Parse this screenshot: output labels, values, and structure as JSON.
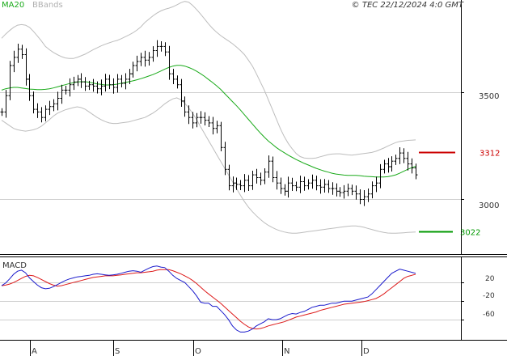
{
  "header": {
    "ma_label": "MA20",
    "bbands_label": "BBands",
    "copyright": "© TEC 22/12/2024 4:0 GMT"
  },
  "macd_label": "MACD",
  "colors": {
    "price": "#000000",
    "ma20": "#1aaa1a",
    "bbands": "#bdbdbd",
    "macd": "#1a1acc",
    "signal": "#dd1a1a",
    "resistance": "#cc0000",
    "support": "#009900",
    "grid": "#cfcfcf"
  },
  "chart_data": [
    {
      "type": "line",
      "title": "",
      "subtype": "ohlc-bars",
      "x_tick_labels": [
        "A",
        "S",
        "O",
        "N",
        "D"
      ],
      "y_tick_labels": [
        "3500",
        "3000"
      ],
      "ylim": [
        2940,
        3870
      ],
      "grid": "horizontal",
      "resistance": {
        "value": 3312,
        "label": "3312"
      },
      "support": {
        "value": 3022,
        "label": "3022"
      },
      "series": [
        {
          "name": "MA20",
          "values": [
            3540,
            3545,
            3548,
            3550,
            3550,
            3548,
            3546,
            3544,
            3543,
            3542,
            3542,
            3543,
            3545,
            3548,
            3552,
            3556,
            3560,
            3564,
            3567,
            3570,
            3571,
            3571,
            3569,
            3566,
            3563,
            3561,
            3559,
            3559,
            3560,
            3562,
            3565,
            3568,
            3571,
            3574,
            3578,
            3582,
            3587,
            3592,
            3597,
            3603,
            3610,
            3617,
            3623,
            3628,
            3631,
            3631,
            3628,
            3623,
            3617,
            3609,
            3600,
            3590,
            3579,
            3568,
            3556,
            3543,
            3528,
            3513,
            3498,
            3483,
            3467,
            3450,
            3433,
            3416,
            3399,
            3383,
            3368,
            3354,
            3342,
            3330,
            3320,
            3311,
            3302,
            3294,
            3286,
            3279,
            3272,
            3266,
            3260,
            3254,
            3249,
            3244,
            3240,
            3236,
            3233,
            3231,
            3229,
            3228,
            3228,
            3228,
            3227,
            3225,
            3224,
            3223,
            3222,
            3222,
            3222,
            3223,
            3226,
            3230,
            3236,
            3243,
            3250,
            3256,
            3261
          ]
        },
        {
          "name": "BBands upper",
          "values": [
            3730,
            3745,
            3758,
            3770,
            3778,
            3780,
            3778,
            3770,
            3755,
            3738,
            3720,
            3700,
            3688,
            3678,
            3670,
            3663,
            3658,
            3656,
            3656,
            3660,
            3666,
            3672,
            3680,
            3688,
            3695,
            3702,
            3708,
            3713,
            3718,
            3722,
            3728,
            3735,
            3742,
            3750,
            3760,
            3772,
            3788,
            3800,
            3812,
            3822,
            3830,
            3836,
            3840,
            3845,
            3852,
            3860,
            3865,
            3862,
            3850,
            3835,
            3818,
            3800,
            3782,
            3766,
            3752,
            3740,
            3730,
            3720,
            3710,
            3698,
            3685,
            3670,
            3650,
            3628,
            3600,
            3570,
            3540,
            3505,
            3470,
            3435,
            3400,
            3370,
            3345,
            3325,
            3308,
            3297,
            3292,
            3290,
            3290,
            3292,
            3296,
            3300,
            3304,
            3306,
            3307,
            3307,
            3305,
            3303,
            3302,
            3304,
            3306,
            3308,
            3310,
            3312,
            3316,
            3322,
            3328,
            3335,
            3342,
            3348,
            3352,
            3354,
            3356,
            3357,
            3358
          ]
        },
        {
          "name": "BBands lower",
          "values": [
            3430,
            3420,
            3410,
            3400,
            3395,
            3392,
            3390,
            3392,
            3395,
            3400,
            3408,
            3420,
            3432,
            3445,
            3455,
            3462,
            3468,
            3472,
            3476,
            3479,
            3476,
            3470,
            3460,
            3450,
            3440,
            3432,
            3425,
            3420,
            3418,
            3418,
            3420,
            3422,
            3424,
            3428,
            3432,
            3436,
            3440,
            3448,
            3456,
            3466,
            3478,
            3490,
            3500,
            3508,
            3512,
            3505,
            3492,
            3475,
            3455,
            3432,
            3405,
            3380,
            3355,
            3330,
            3305,
            3280,
            3255,
            3230,
            3205,
            3180,
            3155,
            3132,
            3112,
            3095,
            3080,
            3067,
            3055,
            3045,
            3037,
            3030,
            3025,
            3021,
            3018,
            3016,
            3016,
            3018,
            3020,
            3022,
            3024,
            3026,
            3028,
            3030,
            3032,
            3034,
            3036,
            3038,
            3040,
            3042,
            3043,
            3043,
            3041,
            3038,
            3034,
            3030,
            3026,
            3022,
            3019,
            3017,
            3016,
            3016,
            3017,
            3018,
            3019,
            3020,
            3021
          ]
        },
        {
          "name": "Close",
          "values": [
            3460,
            3520,
            3630,
            3660,
            3690,
            3670,
            3580,
            3520,
            3470,
            3460,
            3440,
            3470,
            3480,
            3490,
            3510,
            3540,
            3540,
            3560,
            3570,
            3580,
            3570,
            3555,
            3560,
            3555,
            3545,
            3555,
            3580,
            3560,
            3550,
            3580,
            3565,
            3580,
            3600,
            3630,
            3645,
            3660,
            3650,
            3660,
            3685,
            3700,
            3700,
            3680,
            3600,
            3580,
            3560,
            3500,
            3460,
            3440,
            3420,
            3440,
            3440,
            3430,
            3420,
            3400,
            3410,
            3330,
            3250,
            3190,
            3200,
            3195,
            3190,
            3210,
            3190,
            3230,
            3220,
            3210,
            3240,
            3280,
            3220,
            3200,
            3180,
            3170,
            3200,
            3190,
            3185,
            3205,
            3190,
            3200,
            3210,
            3190,
            3185,
            3195,
            3180,
            3180,
            3170,
            3165,
            3170,
            3180,
            3170,
            3160,
            3140,
            3150,
            3160,
            3190,
            3200,
            3250,
            3270,
            3260,
            3280,
            3290,
            3310,
            3290,
            3270,
            3255,
            3230
          ]
        }
      ]
    },
    {
      "type": "line",
      "title": "MACD",
      "y_tick_labels": [
        "20",
        "-20",
        "-60"
      ],
      "ylim": [
        -105,
        55
      ],
      "series": [
        {
          "name": "MACD",
          "values": [
            0,
            5,
            13,
            22,
            28,
            30,
            25,
            15,
            8,
            1,
            -4,
            -6,
            -5,
            -2,
            2,
            6,
            10,
            13,
            15,
            17,
            18,
            19,
            20,
            22,
            23,
            22,
            21,
            20,
            21,
            22,
            24,
            26,
            28,
            29,
            28,
            26,
            30,
            34,
            37,
            38,
            36,
            35,
            28,
            20,
            14,
            10,
            6,
            -2,
            -10,
            -20,
            -32,
            -34,
            -34,
            -40,
            -40,
            -48,
            -56,
            -66,
            -78,
            -86,
            -90,
            -90,
            -88,
            -84,
            -78,
            -74,
            -70,
            -64,
            -66,
            -66,
            -64,
            -60,
            -56,
            -54,
            -55,
            -52,
            -50,
            -46,
            -42,
            -40,
            -38,
            -38,
            -36,
            -34,
            -34,
            -32,
            -30,
            -30,
            -30,
            -28,
            -26,
            -24,
            -22,
            -16,
            -8,
            0,
            8,
            16,
            24,
            28,
            32,
            30,
            28,
            26,
            24
          ]
        },
        {
          "name": "Signal",
          "values": [
            0,
            1,
            3,
            6,
            10,
            14,
            18,
            20,
            19,
            16,
            12,
            8,
            4,
            1,
            -1,
            0,
            2,
            4,
            6,
            8,
            10,
            12,
            14,
            16,
            17,
            18,
            19,
            19,
            19,
            20,
            21,
            22,
            23,
            24,
            25,
            25,
            26,
            27,
            28,
            30,
            31,
            31,
            31,
            29,
            26,
            23,
            19,
            15,
            10,
            4,
            -3,
            -10,
            -16,
            -22,
            -28,
            -34,
            -41,
            -48,
            -55,
            -62,
            -69,
            -75,
            -80,
            -83,
            -84,
            -83,
            -81,
            -78,
            -76,
            -74,
            -72,
            -70,
            -67,
            -64,
            -61,
            -59,
            -57,
            -55,
            -53,
            -51,
            -48,
            -46,
            -44,
            -42,
            -40,
            -38,
            -36,
            -35,
            -34,
            -33,
            -32,
            -31,
            -29,
            -27,
            -25,
            -21,
            -16,
            -10,
            -4,
            2,
            8,
            14,
            18,
            20,
            22
          ]
        }
      ]
    }
  ]
}
